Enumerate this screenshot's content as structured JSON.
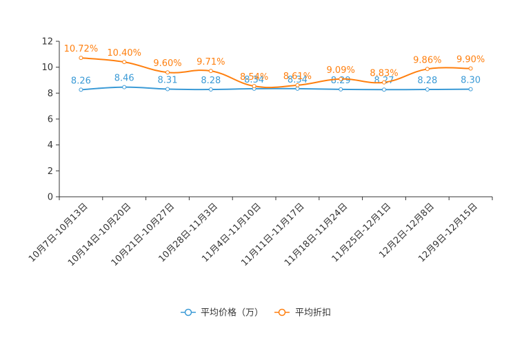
{
  "chart_data": {
    "type": "line",
    "title": "",
    "xlabel": "",
    "ylabel": "",
    "ylim": [
      0,
      12
    ],
    "yticks": [
      "0",
      "2",
      "4",
      "6",
      "8",
      "10",
      "12"
    ],
    "grid": false,
    "legend_position": "bottom-center",
    "categories": [
      "10月7日-10月13日",
      "10月14日-10月20日",
      "10月21日-10月27日",
      "10月28日-11月3日",
      "11月4日-11月10日",
      "11月11日-11月17日",
      "11月18日-11月24日",
      "11月25日-12月1日",
      "12月2日-12月8日",
      "12月9日-12月15日"
    ],
    "series": [
      {
        "name": "平均价格（万）",
        "color": "#3a9ad6",
        "values": [
          8.26,
          8.46,
          8.31,
          8.28,
          8.34,
          8.34,
          8.29,
          8.27,
          8.28,
          8.3
        ],
        "labels": [
          "8.26",
          "8.46",
          "8.31",
          "8.28",
          "8.34",
          "8.34",
          "8.29",
          "8.27",
          "8.28",
          "8.30"
        ]
      },
      {
        "name": "平均折扣",
        "color": "#ff7f0e",
        "values": [
          10.72,
          10.4,
          9.6,
          9.71,
          8.54,
          8.61,
          9.09,
          8.83,
          9.86,
          9.9
        ],
        "labels": [
          "10.72%",
          "10.40%",
          "9.60%",
          "9.71%",
          "8.54%",
          "8.61%",
          "9.09%",
          "8.83%",
          "9.86%",
          "9.90%"
        ]
      }
    ]
  }
}
